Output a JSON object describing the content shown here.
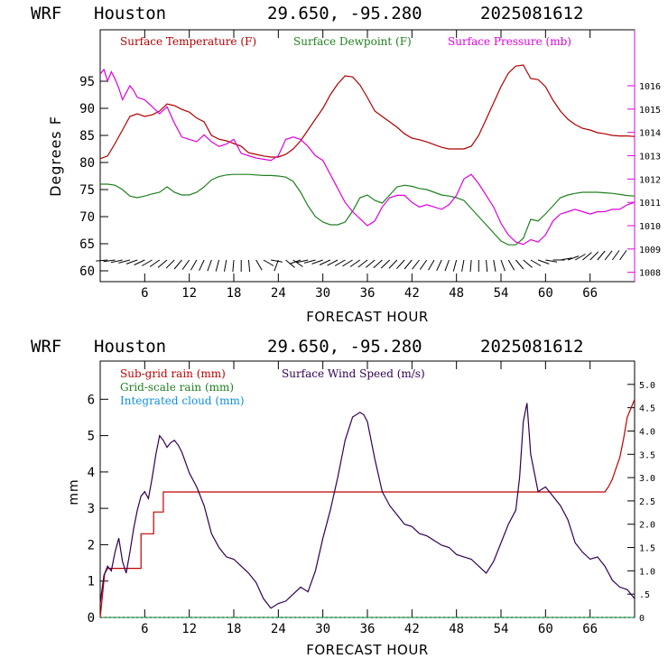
{
  "header": {
    "model": "WRF",
    "city": "Houston",
    "coords": "29.650, -95.280",
    "run": "2025081612"
  },
  "colors": {
    "temperature": "#b00000",
    "dewpoint": "#208020",
    "pressure": "#e000e0",
    "subgrid_rain": "#c00000",
    "grid_rain": "#208020",
    "cloud": "#1090e0",
    "wind_speed": "#300050",
    "axis": "#000000"
  },
  "chart_data": [
    {
      "type": "line",
      "title": "",
      "xlabel": "FORECAST HOUR",
      "ylabel": "Degrees F",
      "xlim": [
        0,
        72
      ],
      "ylim": [
        58,
        104.5
      ],
      "y2lim": [
        1007.6,
        1018.4
      ],
      "x_ticks": [
        6,
        12,
        18,
        24,
        30,
        36,
        42,
        48,
        54,
        60,
        66
      ],
      "x_tick_labels": [
        "6",
        "12",
        "18",
        "24",
        "30",
        "36",
        "42",
        "48",
        "54",
        "60",
        "66"
      ],
      "y_ticks": [
        60,
        65,
        70,
        75,
        80,
        85,
        90,
        95
      ],
      "y_tick_labels": [
        "60",
        "65",
        "70",
        "75",
        "80",
        "85",
        "90",
        "95"
      ],
      "y2_ticks": [
        1008,
        1009,
        1010,
        1011,
        1012,
        1013,
        1014,
        1015,
        1016
      ],
      "y2_tick_labels": [
        "1008",
        "1009",
        "1010",
        "1011",
        "1012",
        "1013",
        "1014",
        "1015",
        "1016"
      ],
      "legend": [
        "Surface Temperature (F)",
        "Surface Dewpoint (F)",
        "Surface Pressure (mb)"
      ],
      "legend_position": "top",
      "series": [
        {
          "name": "Surface Temperature (F)",
          "axis": "left",
          "x": [
            0,
            1,
            2,
            3,
            4,
            5,
            6,
            7,
            8,
            9,
            10,
            11,
            12,
            13,
            14,
            15,
            16,
            17,
            18,
            19,
            20,
            21,
            22,
            23,
            24,
            25,
            26,
            27,
            28,
            29,
            30,
            31,
            32,
            33,
            34,
            35,
            36,
            37,
            38,
            39,
            40,
            41,
            42,
            43,
            44,
            45,
            46,
            47,
            48,
            49,
            50,
            51,
            52,
            53,
            54,
            55,
            56,
            57,
            58,
            59,
            60,
            61,
            62,
            63,
            64,
            65,
            66,
            67,
            68,
            69,
            70,
            71,
            72
          ],
          "values": [
            80.7,
            81.2,
            83.5,
            86.0,
            88.5,
            89.0,
            88.5,
            88.8,
            89.5,
            90.8,
            90.5,
            89.8,
            89.3,
            88.2,
            87.5,
            85.0,
            84.3,
            84.0,
            83.5,
            83.0,
            81.8,
            81.5,
            81.2,
            81.0,
            81.0,
            81.5,
            82.5,
            84.0,
            86.0,
            88.0,
            90.0,
            92.5,
            94.5,
            96.0,
            95.8,
            94.3,
            92.0,
            89.5,
            88.5,
            87.5,
            86.5,
            85.3,
            84.5,
            84.2,
            83.8,
            83.3,
            82.8,
            82.5,
            82.5,
            82.5,
            83.0,
            85.0,
            88.0,
            91.0,
            94.0,
            96.5,
            97.8,
            98.0,
            95.5,
            95.3,
            94.0,
            91.5,
            89.5,
            88.0,
            87.0,
            86.3,
            86.0,
            85.5,
            85.3,
            85.0,
            84.9,
            84.9,
            84.8
          ]
        },
        {
          "name": "Surface Dewpoint (F)",
          "axis": "left",
          "x": [
            0,
            1,
            2,
            3,
            4,
            5,
            6,
            7,
            8,
            9,
            10,
            11,
            12,
            13,
            14,
            15,
            16,
            17,
            18,
            19,
            20,
            21,
            22,
            23,
            24,
            25,
            26,
            27,
            28,
            29,
            30,
            31,
            32,
            33,
            34,
            35,
            36,
            37,
            38,
            39,
            40,
            41,
            42,
            43,
            44,
            45,
            46,
            47,
            48,
            49,
            50,
            51,
            52,
            53,
            54,
            55,
            56,
            57,
            58,
            59,
            60,
            61,
            62,
            63,
            64,
            65,
            66,
            67,
            68,
            69,
            70,
            71,
            72
          ],
          "values": [
            76.0,
            76.0,
            75.8,
            75.0,
            73.8,
            73.5,
            73.8,
            74.2,
            74.5,
            75.5,
            74.5,
            74.0,
            74.0,
            74.5,
            75.5,
            76.8,
            77.4,
            77.7,
            77.8,
            77.8,
            77.8,
            77.7,
            77.6,
            77.6,
            77.5,
            77.3,
            76.5,
            74.5,
            72.0,
            70.0,
            69.0,
            68.5,
            68.5,
            69.0,
            71.0,
            73.5,
            74.0,
            73.0,
            72.5,
            74.0,
            75.5,
            75.8,
            75.6,
            75.2,
            75.0,
            74.5,
            74.0,
            73.8,
            73.5,
            73.0,
            71.5,
            70.0,
            68.5,
            67.0,
            65.5,
            64.8,
            64.8,
            66.0,
            69.5,
            69.2,
            70.5,
            72.0,
            73.5,
            74.0,
            74.3,
            74.5,
            74.5,
            74.5,
            74.4,
            74.3,
            74.1,
            73.9,
            73.8
          ]
        },
        {
          "name": "Surface Pressure (mb)",
          "axis": "right",
          "x": [
            0,
            0.5,
            1,
            1.5,
            2,
            2.5,
            3,
            3.5,
            4,
            4.5,
            5,
            6,
            7,
            8,
            9,
            10,
            11,
            12,
            13,
            14,
            15,
            16,
            17,
            18,
            19,
            20,
            21,
            22,
            23,
            24,
            25,
            26,
            27,
            28,
            29,
            30,
            31,
            32,
            33,
            34,
            35,
            36,
            37,
            38,
            39,
            40,
            41,
            42,
            43,
            44,
            45,
            46,
            47,
            48,
            49,
            50,
            51,
            52,
            53,
            54,
            55,
            56,
            57,
            58,
            59,
            60,
            61,
            62,
            63,
            64,
            65,
            66,
            67,
            68,
            69,
            70,
            71,
            72
          ],
          "values": [
            1016.5,
            1016.7,
            1016.2,
            1016.6,
            1016.3,
            1015.9,
            1015.4,
            1015.7,
            1016.0,
            1015.8,
            1015.5,
            1015.4,
            1015.1,
            1014.8,
            1015.1,
            1014.4,
            1013.8,
            1013.7,
            1013.6,
            1013.9,
            1013.6,
            1013.4,
            1013.5,
            1013.7,
            1013.1,
            1013.0,
            1012.9,
            1012.85,
            1012.8,
            1013.0,
            1013.7,
            1013.8,
            1013.7,
            1013.4,
            1013.0,
            1012.8,
            1012.2,
            1011.6,
            1011.0,
            1010.6,
            1010.3,
            1010.0,
            1010.2,
            1010.8,
            1011.2,
            1011.3,
            1011.3,
            1011.0,
            1010.8,
            1010.9,
            1010.8,
            1010.7,
            1010.9,
            1011.3,
            1012.0,
            1012.2,
            1011.8,
            1011.3,
            1010.8,
            1010.1,
            1009.6,
            1009.3,
            1009.2,
            1009.4,
            1009.3,
            1009.6,
            1010.2,
            1010.5,
            1010.6,
            1010.7,
            1010.6,
            1010.5,
            1010.6,
            1010.6,
            1010.7,
            1010.7,
            1010.9,
            1011.0
          ]
        }
      ],
      "wind_barbs": {
        "row_y": 62,
        "x": [
          1,
          2,
          3,
          4,
          5,
          6,
          7,
          8,
          9,
          10,
          11,
          12,
          13,
          14,
          15,
          16,
          17,
          18,
          19,
          20,
          21,
          22,
          23,
          24,
          25,
          26,
          27,
          28,
          29,
          30,
          31,
          32,
          33,
          34,
          35,
          36,
          37,
          38,
          39,
          40,
          41,
          42,
          43,
          44,
          45,
          46,
          47,
          48,
          49,
          50,
          51,
          52,
          53,
          54,
          55,
          56,
          57,
          58,
          59,
          60,
          61,
          62,
          63,
          64,
          65,
          66,
          67,
          68,
          69,
          70
        ],
        "direction_deg": [
          265,
          262,
          258,
          255,
          250,
          245,
          240,
          235,
          230,
          225,
          220,
          215,
          210,
          205,
          200,
          195,
          190,
          185,
          180,
          175,
          150,
          120,
          100,
          200,
          130,
          125,
          250,
          258,
          255,
          250,
          245,
          242,
          240,
          238,
          235,
          232,
          230,
          228,
          226,
          224,
          222,
          220,
          218,
          215,
          210,
          205,
          200,
          195,
          190,
          185,
          180,
          175,
          170,
          160,
          150,
          140,
          130,
          120,
          110,
          100,
          90,
          80,
          70,
          60,
          50,
          45,
          40,
          38,
          36,
          35
        ]
      }
    },
    {
      "type": "line",
      "title": "",
      "xlabel": "FORECAST HOUR",
      "ylabel": "mm",
      "xlim": [
        0,
        72
      ],
      "ylim": [
        0,
        7.05
      ],
      "y2lim": [
        0,
        5.5
      ],
      "x_ticks": [
        6,
        12,
        18,
        24,
        30,
        36,
        42,
        48,
        54,
        60,
        66
      ],
      "x_tick_labels": [
        "6",
        "12",
        "18",
        "24",
        "30",
        "36",
        "42",
        "48",
        "54",
        "60",
        "66"
      ],
      "y_ticks": [
        0,
        1,
        2,
        3,
        4,
        5,
        6
      ],
      "y_tick_labels": [
        "0",
        "1",
        "2",
        "3",
        "4",
        "5",
        "6"
      ],
      "y2_ticks": [
        0,
        0.5,
        1.0,
        1.5,
        2.0,
        2.5,
        3.0,
        3.5,
        4.0,
        4.5,
        5.0
      ],
      "y2_tick_labels": [
        "0",
        ".5",
        "1.0",
        "1.5",
        "2.0",
        "2.5",
        "3.0",
        "3.5",
        "4.0",
        "4.5",
        "5.0"
      ],
      "legend": [
        "Sub-grid rain (mm)",
        "Grid-scale rain (mm)",
        "Integrated cloud (mm)",
        "Surface Wind Speed (m/s)"
      ],
      "legend_position": "top-left",
      "series": [
        {
          "name": "Sub-grid rain (mm)",
          "axis": "left",
          "x": [
            0,
            0.3,
            0.6,
            1,
            5.5,
            5.5,
            7.2,
            7.2,
            8.5,
            8.5,
            68,
            68.5,
            69,
            69.5,
            70,
            70.5,
            71,
            71.5,
            72
          ],
          "values": [
            0,
            0.6,
            1.2,
            1.35,
            1.35,
            2.3,
            2.3,
            2.9,
            2.9,
            3.45,
            3.45,
            3.6,
            3.8,
            4.1,
            4.4,
            4.9,
            5.5,
            5.75,
            6.0
          ]
        },
        {
          "name": "Grid-scale rain (mm)",
          "axis": "left",
          "x": [
            0,
            72
          ],
          "values": [
            0,
            0
          ]
        },
        {
          "name": "Integrated cloud (mm)",
          "axis": "left",
          "x": [
            0,
            72
          ],
          "values": [
            0,
            0
          ]
        },
        {
          "name": "Surface Wind Speed (m/s)",
          "axis": "right",
          "x": [
            0,
            0.5,
            1,
            1.5,
            2,
            2.5,
            3,
            3.5,
            4,
            4.5,
            5,
            5.5,
            6,
            6.5,
            7,
            7.5,
            8,
            8.5,
            9,
            9.5,
            10,
            10.5,
            11,
            12,
            13,
            14,
            15,
            16,
            17,
            18,
            19,
            20,
            21,
            22,
            23,
            24,
            25,
            26,
            27,
            28,
            29,
            30,
            31,
            32,
            33,
            34,
            35,
            35.5,
            36,
            37,
            38,
            39,
            40,
            41,
            42,
            43,
            44,
            45,
            46,
            47,
            48,
            49,
            50,
            51,
            52,
            53,
            54,
            55,
            56,
            56.5,
            57,
            57.5,
            58,
            59,
            60,
            61,
            62,
            63,
            64,
            65,
            66,
            67,
            68,
            69,
            70,
            71,
            72
          ],
          "values": [
            0.3,
            0.9,
            1.1,
            1.0,
            1.4,
            1.7,
            1.2,
            0.95,
            1.4,
            1.9,
            2.3,
            2.6,
            2.7,
            2.55,
            3.0,
            3.5,
            3.9,
            3.8,
            3.65,
            3.75,
            3.8,
            3.7,
            3.55,
            3.1,
            2.8,
            2.4,
            1.8,
            1.5,
            1.3,
            1.25,
            1.1,
            0.95,
            0.75,
            0.4,
            0.2,
            0.3,
            0.35,
            0.5,
            0.65,
            0.55,
            1.0,
            1.7,
            2.3,
            3.0,
            3.8,
            4.3,
            4.4,
            4.35,
            4.2,
            3.4,
            2.7,
            2.4,
            2.2,
            2.0,
            1.95,
            1.8,
            1.75,
            1.65,
            1.55,
            1.5,
            1.35,
            1.3,
            1.25,
            1.1,
            0.95,
            1.2,
            1.6,
            2.0,
            2.3,
            3.0,
            4.2,
            4.6,
            3.5,
            2.7,
            2.8,
            2.6,
            2.4,
            2.1,
            1.6,
            1.4,
            1.25,
            1.3,
            1.1,
            0.8,
            0.65,
            0.6,
            0.4
          ]
        }
      ]
    }
  ]
}
